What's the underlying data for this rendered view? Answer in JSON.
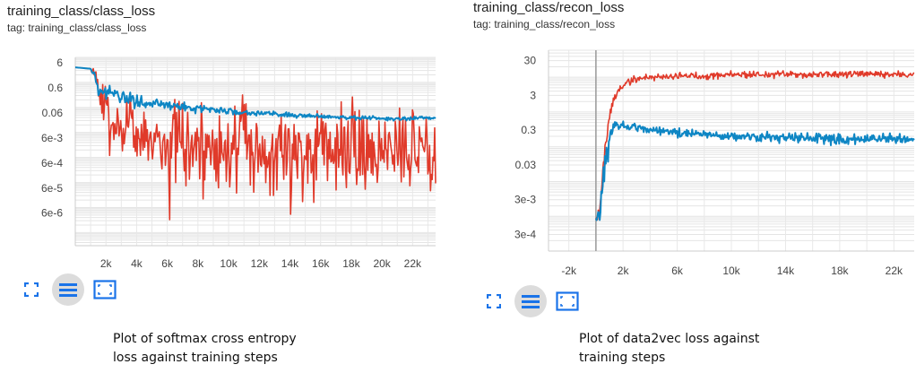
{
  "panels": [
    {
      "title": "training_class/class_loss",
      "tag": "tag: training_class/class_loss",
      "caption_lines": [
        "Plot of softmax cross entropy",
        "loss against training steps"
      ]
    },
    {
      "title": "training_class/recon_loss",
      "tag": "tag: training_class/recon_loss",
      "caption_lines": [
        "Plot of data2vec loss against",
        "training steps"
      ]
    }
  ],
  "controls": {
    "icons": [
      "expand-icon",
      "data-selection-icon",
      "fit-domain-icon"
    ]
  },
  "colors": {
    "series_red": "#e03a2a",
    "series_blue": "#0e86c4",
    "grid": "#dddddd",
    "axis": "#999999",
    "active_control_bg": "#dcdcdc",
    "icon": "#1a73e8"
  },
  "chart_data": [
    {
      "type": "line",
      "yscale": "log",
      "xlim": [
        0,
        23500
      ],
      "ylim": [
        3e-07,
        10
      ],
      "xticks": [
        2000,
        4000,
        6000,
        8000,
        10000,
        12000,
        14000,
        16000,
        18000,
        20000,
        22000
      ],
      "xtick_labels": [
        "2k",
        "4k",
        "6k",
        "8k",
        "10k",
        "12k",
        "14k",
        "16k",
        "18k",
        "20k",
        "22k"
      ],
      "yticks": [
        6,
        0.6,
        0.06,
        0.006,
        0.0006,
        6e-05,
        6e-06
      ],
      "ytick_labels": [
        "6",
        "0.6",
        "0.06",
        "6e-3",
        "6e-4",
        "6e-5",
        "6e-6"
      ],
      "grid": true,
      "series": [
        {
          "color": "#e03a2a",
          "x": [
            0,
            1000,
            1500,
            2000,
            3000,
            4000,
            6000,
            8000,
            10000,
            12000,
            14000,
            16000,
            18000,
            20000,
            22000,
            23500
          ],
          "y": [
            4,
            3.5,
            0.5,
            0.05,
            0.02,
            0.01,
            0.008,
            0.005,
            0.004,
            0.003,
            0.003,
            0.003,
            0.003,
            0.003,
            0.003,
            0.003
          ],
          "noise_log10": [
            0,
            0,
            0.8,
            1.3,
            1.6,
            1.7,
            1.8,
            1.8,
            1.9,
            1.9,
            1.9,
            1.9,
            1.9,
            1.9,
            1.9,
            1.9
          ]
        },
        {
          "color": "#0e86c4",
          "x": [
            0,
            1000,
            1500,
            2000,
            3000,
            4000,
            6000,
            8000,
            10000,
            12000,
            14000,
            16000,
            18000,
            20000,
            22000,
            23500
          ],
          "y": [
            4,
            3.5,
            0.6,
            0.35,
            0.25,
            0.18,
            0.12,
            0.09,
            0.07,
            0.06,
            0.05,
            0.045,
            0.04,
            0.035,
            0.035,
            0.04
          ],
          "noise_log10": [
            0,
            0,
            0.3,
            0.35,
            0.35,
            0.3,
            0.25,
            0.2,
            0.15,
            0.12,
            0.1,
            0.1,
            0.1,
            0.1,
            0.1,
            0.1
          ]
        }
      ]
    },
    {
      "type": "line",
      "yscale": "log",
      "xlim": [
        -3500,
        23500
      ],
      "ylim": [
        0.0001,
        60
      ],
      "xticks": [
        -2000,
        2000,
        6000,
        10000,
        14000,
        18000,
        22000
      ],
      "xtick_labels": [
        "-2k",
        "2k",
        "6k",
        "10k",
        "14k",
        "18k",
        "22k"
      ],
      "yticks": [
        30,
        3,
        0.3,
        0.03,
        0.003,
        0.0003
      ],
      "ytick_labels": [
        "30",
        "3",
        "0.3",
        "0.03",
        "3e-3",
        "3e-4"
      ],
      "grid": true,
      "series": [
        {
          "color": "#e03a2a",
          "x": [
            0,
            300,
            600,
            900,
            1300,
            2000,
            3000,
            4000,
            6000,
            8000,
            10000,
            14000,
            18000,
            23500
          ],
          "y": [
            0.0009,
            0.0015,
            0.02,
            0.3,
            2.0,
            6.0,
            9.0,
            10.0,
            11.0,
            11.0,
            12.0,
            12.0,
            12.0,
            12.0
          ],
          "noise_log10": [
            0.15,
            0.4,
            0.6,
            0.4,
            0.2,
            0.15,
            0.12,
            0.12,
            0.12,
            0.12,
            0.12,
            0.12,
            0.12,
            0.12
          ]
        },
        {
          "color": "#0e86c4",
          "x": [
            0,
            300,
            600,
            900,
            1300,
            2000,
            3000,
            4000,
            6000,
            8000,
            10000,
            14000,
            18000,
            23500
          ],
          "y": [
            0.0009,
            0.0015,
            0.01,
            0.1,
            0.4,
            0.42,
            0.35,
            0.3,
            0.25,
            0.22,
            0.2,
            0.18,
            0.17,
            0.17
          ],
          "noise_log10": [
            0.15,
            0.4,
            0.6,
            0.4,
            0.12,
            0.12,
            0.12,
            0.13,
            0.14,
            0.15,
            0.16,
            0.17,
            0.18,
            0.18
          ]
        }
      ]
    }
  ]
}
